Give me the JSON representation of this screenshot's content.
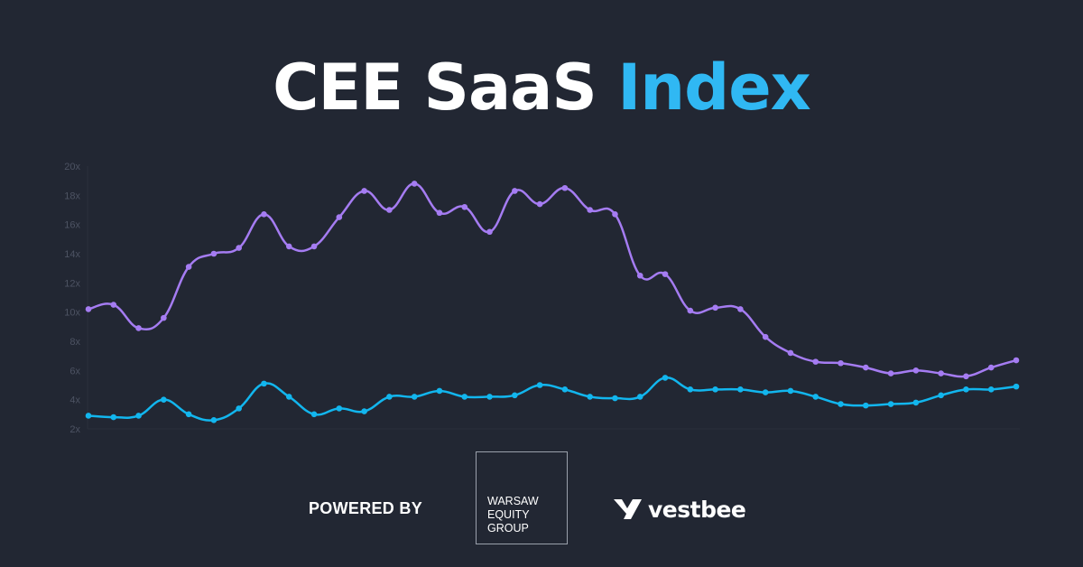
{
  "header": {
    "title_main": "CEE SaaS",
    "title_accent": "Index"
  },
  "colors": {
    "background": "#222733",
    "accent": "#30b8f3",
    "series_purple": "#a57cf2",
    "series_blue": "#12b6ee",
    "axis_text": "#4d5363"
  },
  "footer": {
    "powered_by": "POWERED BY",
    "partner1": {
      "lines": [
        "WARSAW",
        "EQUITY",
        "GROUP"
      ]
    },
    "partner2": {
      "name": "vestbee",
      "icon": "vestbee-logo-icon"
    }
  },
  "chart_data": {
    "type": "line",
    "title": "CEE SaaS Index",
    "xlabel": "",
    "ylabel": "",
    "ylim": [
      2,
      20
    ],
    "yticks": [
      "2x",
      "4x",
      "6x",
      "8x",
      "10x",
      "12x",
      "14x",
      "16x",
      "18x",
      "20x"
    ],
    "grid": false,
    "legend": "none",
    "x": [
      1,
      2,
      3,
      4,
      5,
      6,
      7,
      8,
      9,
      10,
      11,
      12,
      13,
      14,
      15,
      16,
      17,
      18,
      19,
      20,
      21,
      22,
      23,
      24,
      25,
      26,
      27,
      28,
      29,
      30,
      31,
      32,
      33,
      34,
      35,
      36,
      37,
      38
    ],
    "series": [
      {
        "name": "purple",
        "color": "#a57cf2",
        "values": [
          10.2,
          10.5,
          8.9,
          9.6,
          13.1,
          14.0,
          14.4,
          16.7,
          14.5,
          14.5,
          16.5,
          18.3,
          17.0,
          18.8,
          16.8,
          17.2,
          15.5,
          18.3,
          17.4,
          18.5,
          17.0,
          16.7,
          12.5,
          12.6,
          10.1,
          10.3,
          10.2,
          8.3,
          7.2,
          6.6,
          6.5,
          6.2,
          5.8,
          6.0,
          5.8,
          5.6,
          6.2,
          6.7
        ]
      },
      {
        "name": "blue",
        "color": "#12b6ee",
        "values": [
          2.9,
          2.8,
          2.9,
          4.0,
          3.0,
          2.6,
          3.4,
          5.1,
          4.2,
          3.0,
          3.4,
          3.2,
          4.2,
          4.2,
          4.6,
          4.2,
          4.2,
          4.3,
          5.0,
          4.7,
          4.2,
          4.1,
          4.2,
          5.5,
          4.7,
          4.7,
          4.7,
          4.5,
          4.6,
          4.2,
          3.7,
          3.6,
          3.7,
          3.8,
          4.3,
          4.7,
          4.7,
          4.9
        ]
      }
    ]
  }
}
